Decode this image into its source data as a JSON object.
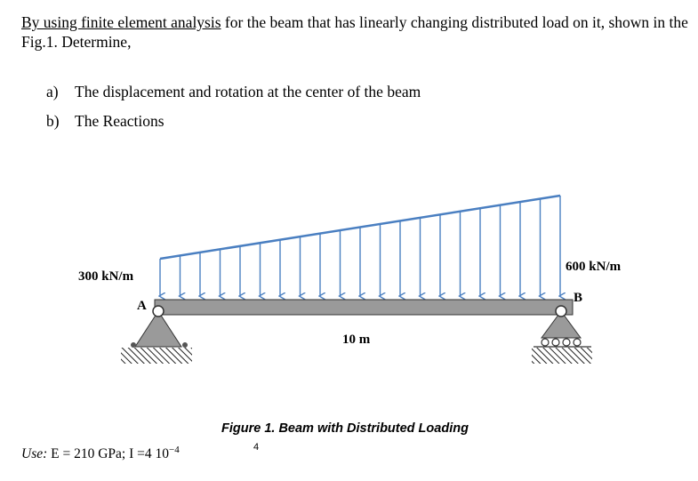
{
  "problem": {
    "intro_underlined": "By using finite element analysis",
    "intro_rest": " for the beam that has linearly changing distributed load on it, shown in the Fig.1. Determine,",
    "items": [
      {
        "label": "a)",
        "text": "The displacement and rotation at the center of the beam"
      },
      {
        "label": "b)",
        "text": "The Reactions"
      }
    ]
  },
  "figure": {
    "load_left": "300 kN/m",
    "load_right": "600 kN/m",
    "point_a": "A",
    "point_b": "B",
    "span": "10 m",
    "load_color": "#4a7fc1",
    "beam_color": "#9a9a9a",
    "caption": "Figure 1. Beam with Distributed Loading"
  },
  "footer": {
    "use_prefix": "Use:",
    "use_text": " E = 210 GPa; I =4  10",
    "use_exp": "−4",
    "stray_number": "4"
  }
}
